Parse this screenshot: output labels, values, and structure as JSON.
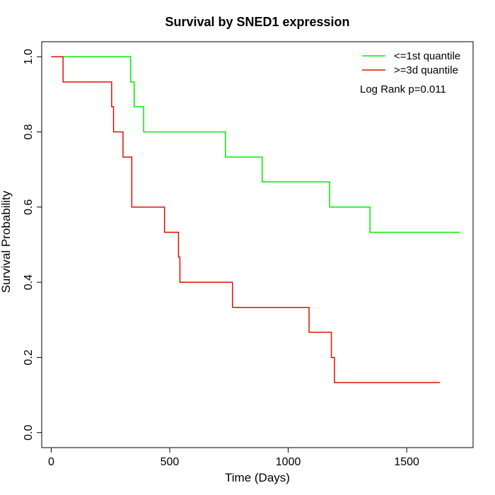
{
  "chart_data": {
    "type": "line",
    "title": "Survival by SNED1 expression",
    "xlabel": "Time (Days)",
    "ylabel": "Survival Probability",
    "xlim": [
      -40,
      1780
    ],
    "ylim": [
      -0.04,
      1.04
    ],
    "xticks": [
      0,
      500,
      1000,
      1500
    ],
    "yticks": [
      0.0,
      0.2,
      0.4,
      0.6,
      0.8,
      1.0
    ],
    "xtick_labels": [
      "0",
      "500",
      "1000",
      "1500"
    ],
    "ytick_labels": [
      "0.0",
      "0.2",
      "0.4",
      "0.6",
      "0.8",
      "1.0"
    ],
    "grid": false,
    "legend_position": "top-right",
    "annotation": "Log Rank p=0.011",
    "series": [
      {
        "name": "<=1st quantile",
        "color": "#00ee00",
        "step": true,
        "x": [
          0,
          335,
          350,
          390,
          735,
          890,
          1175,
          1345,
          1725
        ],
        "y": [
          1.0,
          0.933,
          0.867,
          0.8,
          0.733,
          0.667,
          0.6,
          0.533,
          0.533
        ]
      },
      {
        "name": ">=3d quantile",
        "color": "#dd1100",
        "step": true,
        "x": [
          0,
          50,
          255,
          263,
          303,
          340,
          478,
          537,
          543,
          765,
          1088,
          1182,
          1195,
          1640
        ],
        "y": [
          1.0,
          0.933,
          0.867,
          0.8,
          0.733,
          0.6,
          0.533,
          0.467,
          0.4,
          0.333,
          0.267,
          0.2,
          0.133,
          0.133
        ]
      }
    ]
  }
}
